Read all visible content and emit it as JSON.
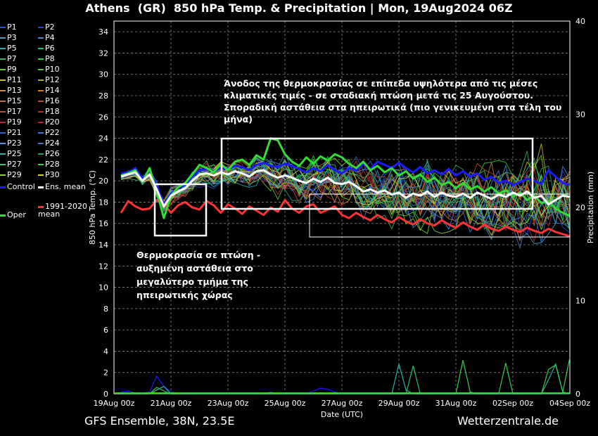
{
  "title": "Athens  (GR)  850 hPa Temp. & Precipitation | Mon, 19Aug2024 06Z",
  "footer": {
    "model": "GFS Ensemble, 38N, 23.5E",
    "site": "Wetterzentrale.de"
  },
  "annotations": {
    "top": [
      "Άνοδος της θερμοκρασίας σε επίπεδα υψηλότερα από τις μέσες",
      "κλιματικές τιμές - σε σταδιακή πτώση μετά τις 25 Αυγούστου.",
      "Σποραδική αστάθεια στα ηπειρωτικά (πιο γενικευμένη στα τέλη του",
      "μήνα)"
    ],
    "left": [
      "Θερμοκρασία σε πτώση -",
      "αυξημένη αστάθεια στο",
      "μεγαλύτερο τμήμα της",
      "ηπειρωτικής χώρας"
    ]
  },
  "legend": {
    "members": [
      "P1",
      "P2",
      "P3",
      "P4",
      "P5",
      "P6",
      "P7",
      "P8",
      "P9",
      "P10",
      "P11",
      "P12",
      "P13",
      "P14",
      "P15",
      "P16",
      "P17",
      "P18",
      "P19",
      "P20",
      "P21",
      "P22",
      "P23",
      "P24",
      "P25",
      "P26",
      "P27",
      "P28",
      "P29",
      "P30"
    ],
    "member_colors": [
      "#1f4fff",
      "#2a3fd0",
      "#3aa0c8",
      "#3f8ce0",
      "#2aa8a8",
      "#20c070",
      "#30b060",
      "#28d040",
      "#6ad020",
      "#58c030",
      "#c8c020",
      "#b8a830",
      "#c89040",
      "#d07a30",
      "#c86a40",
      "#b85030",
      "#c04a30",
      "#b83028",
      "#b02840",
      "#c02030",
      "#2a60d0",
      "#3a78e0",
      "#4a90e0",
      "#4a70c0",
      "#30b0a0",
      "#20a080",
      "#40c060",
      "#30d050",
      "#90d030",
      "#d8d040"
    ],
    "control": "Control",
    "ens_mean": "Ens. mean",
    "clim": "1991-2020 mean",
    "oper": "Oper"
  },
  "chart_data": {
    "type": "line",
    "ylabel": "850 hPa Temp. (°C)",
    "y2label": "Precipitation (mm)",
    "xlabel": "Date (UTC)",
    "ylim": [
      0,
      35
    ],
    "y2lim": [
      0,
      40
    ],
    "yticks": [
      0,
      2,
      4,
      6,
      8,
      10,
      12,
      14,
      16,
      18,
      20,
      22,
      24,
      26,
      28,
      30,
      32,
      34
    ],
    "y2ticks": [
      0,
      10,
      20,
      30,
      40
    ],
    "xticks": [
      "19Aug 00z",
      "21Aug 00z",
      "23Aug 00z",
      "25Aug 00z",
      "27Aug 00z",
      "29Aug 00z",
      "31Aug 00z",
      "02Sep 00z",
      "04Sep 00z"
    ],
    "x_days": [
      0.25,
      0.5,
      0.75,
      1,
      1.25,
      1.5,
      1.75,
      2,
      2.25,
      2.5,
      2.75,
      3,
      3.25,
      3.5,
      3.75,
      4,
      4.25,
      4.5,
      4.75,
      5,
      5.25,
      5.5,
      5.75,
      6,
      6.25,
      6.5,
      6.75,
      7,
      7.25,
      7.5,
      7.75,
      8,
      8.25,
      8.5,
      8.75,
      9,
      9.25,
      9.5,
      9.75,
      10,
      10.25,
      10.5,
      10.75,
      11,
      11.25,
      11.5,
      11.75,
      12,
      12.25,
      12.5,
      12.75,
      13,
      13.25,
      13.5,
      13.75,
      14,
      14.25,
      14.5,
      14.75,
      15,
      15.25,
      15.5,
      15.75,
      16
    ],
    "series": [
      {
        "name": "Control",
        "color": "#1a1aff",
        "width": 3,
        "values": [
          20.7,
          20.8,
          21.2,
          20.2,
          21.0,
          19.5,
          17.8,
          18.8,
          19.3,
          19.6,
          20.4,
          21.0,
          21.1,
          20.9,
          21.2,
          21.1,
          21.4,
          21.3,
          21.0,
          21.5,
          21.7,
          21.4,
          21.3,
          21.6,
          21.4,
          21.1,
          20.8,
          21.2,
          20.9,
          21.5,
          21.0,
          20.7,
          21.2,
          21.0,
          21.6,
          21.1,
          21.8,
          21.5,
          21.2,
          21.7,
          21.2,
          20.8,
          21.3,
          20.7,
          21.0,
          20.6,
          21.1,
          20.5,
          20.9,
          20.4,
          20.7,
          20.1,
          20.4,
          19.8,
          20.0,
          19.6,
          19.9,
          20.2,
          20.0,
          19.7,
          21.0,
          20.4,
          19.8,
          19.6
        ]
      },
      {
        "name": "Ens. mean",
        "color": "#ffffff",
        "width": 3,
        "values": [
          20.4,
          20.6,
          20.8,
          20.0,
          20.6,
          19.2,
          17.6,
          18.6,
          19.0,
          19.3,
          20.0,
          20.6,
          20.7,
          20.5,
          20.8,
          20.6,
          20.9,
          20.7,
          20.4,
          20.9,
          21.0,
          20.6,
          20.3,
          20.5,
          20.3,
          20.0,
          19.8,
          20.2,
          19.9,
          20.3,
          19.8,
          19.7,
          19.9,
          19.5,
          19.0,
          19.2,
          18.9,
          19.1,
          18.7,
          18.9,
          18.4,
          18.8,
          18.6,
          19.0,
          18.5,
          18.9,
          18.6,
          18.5,
          18.8,
          18.4,
          18.9,
          18.6,
          18.3,
          18.7,
          18.5,
          18.9,
          18.6,
          19.0,
          18.4,
          18.6,
          17.8,
          18.2,
          18.6,
          18.5
        ]
      },
      {
        "name": "Oper",
        "color": "#33dd33",
        "width": 3,
        "values": [
          20.5,
          20.7,
          21.0,
          19.9,
          21.2,
          19.0,
          16.5,
          18.6,
          19.4,
          19.8,
          20.6,
          21.5,
          21.2,
          20.8,
          21.6,
          21.0,
          21.8,
          22.0,
          21.5,
          22.4,
          22.0,
          24.0,
          23.8,
          22.5,
          21.8,
          21.4,
          22.2,
          21.6,
          22.3,
          21.9,
          22.5,
          22.2,
          21.6,
          21.2,
          21.8,
          21.0,
          21.4,
          20.8,
          21.2,
          20.5,
          20.9,
          20.2,
          20.6,
          19.9,
          20.3,
          19.6,
          19.9,
          19.3,
          19.8,
          19.2,
          19.5,
          19.0,
          19.4,
          18.8,
          19.1,
          18.5,
          18.9,
          18.2,
          18.6,
          17.9,
          18.1,
          17.4,
          17.0,
          16.7
        ]
      },
      {
        "name": "1991-2020 mean",
        "color": "#ff3333",
        "width": 3,
        "values": [
          17.0,
          18.1,
          17.6,
          17.3,
          17.4,
          18.2,
          17.8,
          17.0,
          17.7,
          18.0,
          17.5,
          17.3,
          18.1,
          17.7,
          17.0,
          17.8,
          17.4,
          16.9,
          17.6,
          17.2,
          16.8,
          17.5,
          17.1,
          18.2,
          17.4,
          17.0,
          17.6,
          17.8,
          17.0,
          17.3,
          17.6,
          16.8,
          16.5,
          17.0,
          16.6,
          16.3,
          16.8,
          16.4,
          16.1,
          16.6,
          16.2,
          15.9,
          16.4,
          16.0,
          15.8,
          16.3,
          15.9,
          15.6,
          16.1,
          15.7,
          15.4,
          15.9,
          15.5,
          15.3,
          15.7,
          15.4,
          15.2,
          15.6,
          15.3,
          15.1,
          15.5,
          15.2,
          15.0,
          14.8
        ]
      }
    ],
    "precip_mm": [
      {
        "name": "P1",
        "color": "#1a1aff",
        "values": [
          0.2,
          0.3,
          0.1,
          0.1,
          0.2,
          1.9,
          0.8,
          0.2,
          0.1,
          0,
          0,
          0,
          0,
          0,
          0,
          0,
          0,
          0,
          0,
          0,
          0,
          0.2,
          0,
          0,
          0,
          0,
          0,
          0.3,
          0.6,
          0.5,
          0.2,
          0,
          0,
          0,
          0,
          0,
          0,
          0,
          0,
          0,
          0,
          0,
          0,
          0,
          0,
          0,
          0,
          0,
          0,
          0,
          0,
          0,
          0,
          0,
          0,
          0,
          0,
          0,
          0,
          0,
          0,
          0,
          0.1,
          0
        ]
      },
      {
        "name": "P6",
        "color": "#30b0a0",
        "values": [
          0,
          0,
          0,
          0,
          0,
          0.4,
          0.8,
          0,
          0,
          0,
          0,
          0,
          0,
          0,
          0,
          0,
          0,
          0,
          0,
          0,
          0,
          0,
          0,
          0,
          0,
          0,
          0,
          0,
          0,
          0,
          0,
          0,
          0,
          0,
          0,
          0,
          0,
          0,
          0,
          3.2,
          0.4,
          0,
          0,
          0,
          0,
          0,
          0,
          0,
          0,
          0,
          0,
          0,
          0,
          0,
          0,
          0,
          0,
          0,
          0,
          0,
          1.5,
          3.2,
          0.2,
          0
        ]
      },
      {
        "name": "P9",
        "color": "#20c070",
        "values": [
          0,
          0,
          0,
          0,
          0,
          0.7,
          0.3,
          0,
          0,
          0,
          0,
          0,
          0,
          0,
          0,
          0,
          0,
          0,
          0,
          0,
          0,
          0,
          0,
          0,
          0,
          0,
          0,
          0,
          0,
          0,
          0,
          0,
          0,
          0,
          0,
          0,
          0,
          0,
          0,
          0,
          0,
          3.0,
          0,
          0,
          0,
          0,
          0,
          0,
          0,
          0,
          0,
          0,
          0,
          0,
          0,
          0,
          0,
          0,
          0,
          0,
          0,
          0,
          0,
          0
        ]
      },
      {
        "name": "P26",
        "color": "#30d050",
        "values": [
          0,
          0,
          0,
          0,
          0,
          0,
          0,
          0,
          0,
          0,
          0,
          0,
          0,
          0,
          0,
          0,
          0,
          0,
          0,
          0,
          0,
          0,
          0,
          0,
          0,
          0,
          0,
          0,
          0,
          0,
          0,
          0,
          0,
          0,
          0,
          0,
          0,
          0,
          0,
          0,
          0,
          0,
          0,
          0,
          0,
          0,
          0,
          0,
          3.6,
          0.2,
          0,
          0,
          0,
          0,
          3.3,
          0,
          0,
          0,
          0,
          0,
          2.6,
          3.1,
          0.2,
          3.9
        ]
      }
    ]
  }
}
